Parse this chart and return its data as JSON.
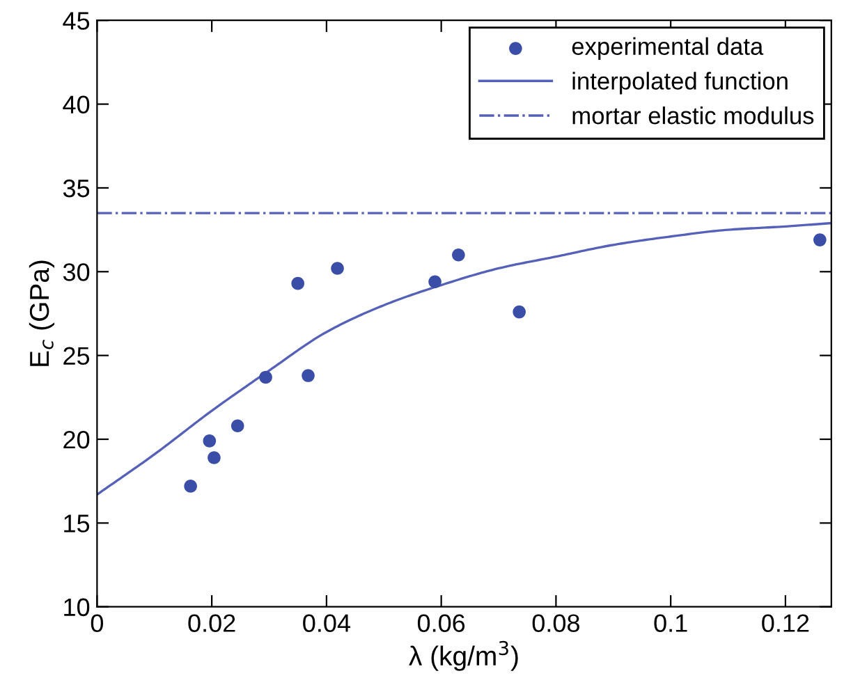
{
  "chart_data": {
    "type": "scatter",
    "xlabel": "λ (kg/m$^{3}$)",
    "ylabel": "E$_{c}$ (GPa)",
    "xlim": [
      0,
      0.128
    ],
    "ylim": [
      10,
      45
    ],
    "xticks": [
      0,
      0.02,
      0.04,
      0.06,
      0.08,
      0.1,
      0.12
    ],
    "yticks": [
      10,
      15,
      20,
      25,
      30,
      35,
      40,
      45
    ],
    "grid": false,
    "legend": "top right",
    "series": [
      {
        "name": "experimental data",
        "marker": "circle",
        "color": "#3a4ea8",
        "x": [
          0.0163,
          0.0196,
          0.0204,
          0.0245,
          0.0294,
          0.035,
          0.0368,
          0.0419,
          0.0589,
          0.063,
          0.0736,
          0.126
        ],
        "values": [
          17.2,
          19.9,
          18.9,
          20.8,
          23.7,
          29.3,
          23.8,
          30.2,
          29.4,
          31.0,
          27.6,
          31.9
        ]
      },
      {
        "name": "interpolated function",
        "type": "line",
        "marker": "none",
        "line_style": "solid",
        "color": "#5560b8",
        "x": [
          0,
          0.01,
          0.02,
          0.03,
          0.04,
          0.05,
          0.06,
          0.07,
          0.08,
          0.09,
          0.1,
          0.11,
          0.12,
          0.128
        ],
        "values": [
          16.7,
          19.1,
          21.7,
          24.1,
          26.4,
          28.0,
          29.2,
          30.2,
          30.9,
          31.6,
          32.1,
          32.5,
          32.7,
          32.9
        ]
      }
    ],
    "ref_lines": [
      {
        "axis": "y",
        "value": 33.5,
        "label": "mortar elastic modulus",
        "color": "#5560b8",
        "line_style": "dashdot"
      }
    ]
  }
}
